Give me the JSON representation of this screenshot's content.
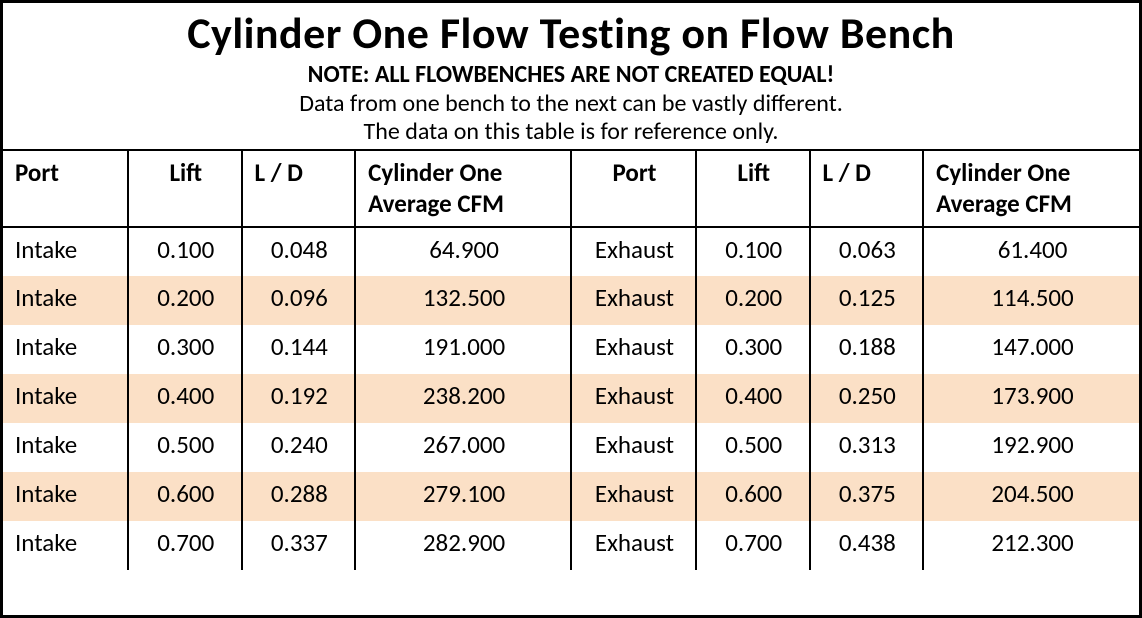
{
  "title": "Cylinder One Flow Testing on Flow Bench",
  "note": "NOTE: ALL FLOWBENCHES ARE NOT CREATED EQUAL!",
  "sub1": "Data from one bench to the next can be vastly different.",
  "sub2": "The data on this table is for reference only.",
  "headers": {
    "port": "Port",
    "lift": "Lift",
    "ld": "L / D",
    "cfm": "Cylinder One Average CFM"
  },
  "rows": [
    {
      "portL": "Intake",
      "liftL": "0.100",
      "ldL": "0.048",
      "cfmL": "64.900",
      "portR": "Exhaust",
      "liftR": "0.100",
      "ldR": "0.063",
      "cfmR": "61.400"
    },
    {
      "portL": "Intake",
      "liftL": "0.200",
      "ldL": "0.096",
      "cfmL": "132.500",
      "portR": "Exhaust",
      "liftR": "0.200",
      "ldR": "0.125",
      "cfmR": "114.500"
    },
    {
      "portL": "Intake",
      "liftL": "0.300",
      "ldL": "0.144",
      "cfmL": "191.000",
      "portR": "Exhaust",
      "liftR": "0.300",
      "ldR": "0.188",
      "cfmR": "147.000"
    },
    {
      "portL": "Intake",
      "liftL": "0.400",
      "ldL": "0.192",
      "cfmL": "238.200",
      "portR": "Exhaust",
      "liftR": "0.400",
      "ldR": "0.250",
      "cfmR": "173.900"
    },
    {
      "portL": "Intake",
      "liftL": "0.500",
      "ldL": "0.240",
      "cfmL": "267.000",
      "portR": "Exhaust",
      "liftR": "0.500",
      "ldR": "0.313",
      "cfmR": "192.900"
    },
    {
      "portL": "Intake",
      "liftL": "0.600",
      "ldL": "0.288",
      "cfmL": "279.100",
      "portR": "Exhaust",
      "liftR": "0.600",
      "ldR": "0.375",
      "cfmR": "204.500"
    },
    {
      "portL": "Intake",
      "liftL": "0.700",
      "ldL": "0.337",
      "cfmL": "282.900",
      "portR": "Exhaust",
      "liftR": "0.700",
      "ldR": "0.438",
      "cfmR": "212.300"
    }
  ],
  "style": {
    "alt_row_color": "#fbe0c6",
    "border_color": "#000000",
    "background": "#ffffff",
    "title_fontsize": 44,
    "note_fontsize": 24,
    "cell_fontsize": 25
  }
}
